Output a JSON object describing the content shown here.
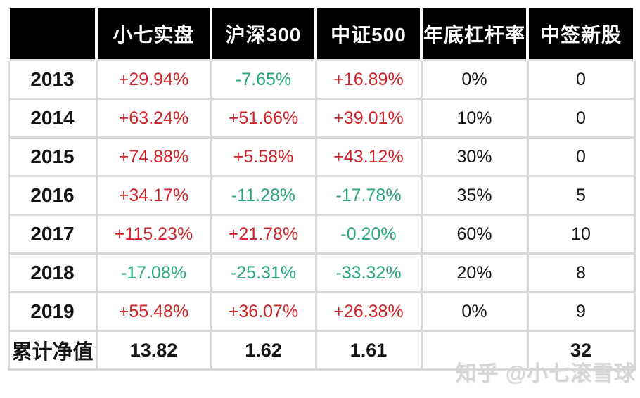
{
  "colors": {
    "positive": "#cd2328",
    "negative": "#28a778",
    "header_bg": "#000000",
    "header_text": "#ffffff",
    "border": "#d8d8d8",
    "watermark": "#d6d6d6"
  },
  "table": {
    "columns": [
      "",
      "小七实盘",
      "沪深300",
      "中证500",
      "年底杠杆率",
      "中签新股"
    ],
    "rows": [
      {
        "label": "2013",
        "cells": [
          {
            "text": "+29.94%",
            "tone": "pos"
          },
          {
            "text": "-7.65%",
            "tone": "neg"
          },
          {
            "text": "+16.89%",
            "tone": "pos"
          },
          {
            "text": "0%",
            "tone": "plain"
          },
          {
            "text": "0",
            "tone": "plain"
          }
        ]
      },
      {
        "label": "2014",
        "cells": [
          {
            "text": "+63.24%",
            "tone": "pos"
          },
          {
            "text": "+51.66%",
            "tone": "pos"
          },
          {
            "text": "+39.01%",
            "tone": "pos"
          },
          {
            "text": "10%",
            "tone": "plain"
          },
          {
            "text": "0",
            "tone": "plain"
          }
        ]
      },
      {
        "label": "2015",
        "cells": [
          {
            "text": "+74.88%",
            "tone": "pos"
          },
          {
            "text": "+5.58%",
            "tone": "pos"
          },
          {
            "text": "+43.12%",
            "tone": "pos"
          },
          {
            "text": "30%",
            "tone": "plain"
          },
          {
            "text": "0",
            "tone": "plain"
          }
        ]
      },
      {
        "label": "2016",
        "cells": [
          {
            "text": "+34.17%",
            "tone": "pos"
          },
          {
            "text": "-11.28%",
            "tone": "neg"
          },
          {
            "text": "-17.78%",
            "tone": "neg"
          },
          {
            "text": "35%",
            "tone": "plain"
          },
          {
            "text": "5",
            "tone": "plain"
          }
        ]
      },
      {
        "label": "2017",
        "cells": [
          {
            "text": "+115.23%",
            "tone": "pos"
          },
          {
            "text": "+21.78%",
            "tone": "pos"
          },
          {
            "text": "-0.20%",
            "tone": "neg"
          },
          {
            "text": "60%",
            "tone": "plain"
          },
          {
            "text": "10",
            "tone": "plain"
          }
        ]
      },
      {
        "label": "2018",
        "cells": [
          {
            "text": "-17.08%",
            "tone": "neg"
          },
          {
            "text": "-25.31%",
            "tone": "neg"
          },
          {
            "text": "-33.32%",
            "tone": "neg"
          },
          {
            "text": "20%",
            "tone": "plain"
          },
          {
            "text": "8",
            "tone": "plain"
          }
        ]
      },
      {
        "label": "2019",
        "cells": [
          {
            "text": "+55.48%",
            "tone": "pos"
          },
          {
            "text": "+36.07%",
            "tone": "pos"
          },
          {
            "text": "+26.38%",
            "tone": "pos"
          },
          {
            "text": "0%",
            "tone": "plain"
          },
          {
            "text": "9",
            "tone": "plain"
          }
        ]
      }
    ],
    "total_row": {
      "label": "累计净值",
      "cells": [
        {
          "text": "13.82",
          "tone": "total"
        },
        {
          "text": "1.62",
          "tone": "total"
        },
        {
          "text": "1.61",
          "tone": "total"
        },
        {
          "text": "",
          "tone": "total"
        },
        {
          "text": "32",
          "tone": "total"
        }
      ]
    }
  },
  "watermark": {
    "text": "知乎 @小七滚雪球"
  },
  "chart_data": {
    "type": "table",
    "title": "",
    "categories": [
      "2013",
      "2014",
      "2015",
      "2016",
      "2017",
      "2018",
      "2019"
    ],
    "series": [
      {
        "name": "小七实盘",
        "values": [
          "+29.94%",
          "+63.24%",
          "+74.88%",
          "+34.17%",
          "+115.23%",
          "-17.08%",
          "+55.48%"
        ]
      },
      {
        "name": "沪深300",
        "values": [
          "-7.65%",
          "+51.66%",
          "+5.58%",
          "-11.28%",
          "+21.78%",
          "-25.31%",
          "+36.07%"
        ]
      },
      {
        "name": "中证500",
        "values": [
          "+16.89%",
          "+39.01%",
          "+43.12%",
          "-17.78%",
          "-0.20%",
          "-33.32%",
          "+26.38%"
        ]
      },
      {
        "name": "年底杠杆率",
        "values": [
          "0%",
          "10%",
          "30%",
          "35%",
          "60%",
          "20%",
          "0%"
        ]
      },
      {
        "name": "中签新股",
        "values": [
          0,
          0,
          0,
          5,
          10,
          8,
          9
        ]
      }
    ],
    "totals": {
      "label": "累计净值",
      "小七实盘": "13.82",
      "沪深300": "1.62",
      "中证500": "1.61",
      "年底杠杆率": "",
      "中签新股": "32"
    },
    "color_convention": "positive=red, negative=green (CN market)",
    "legend_position": "none",
    "grid": true
  }
}
